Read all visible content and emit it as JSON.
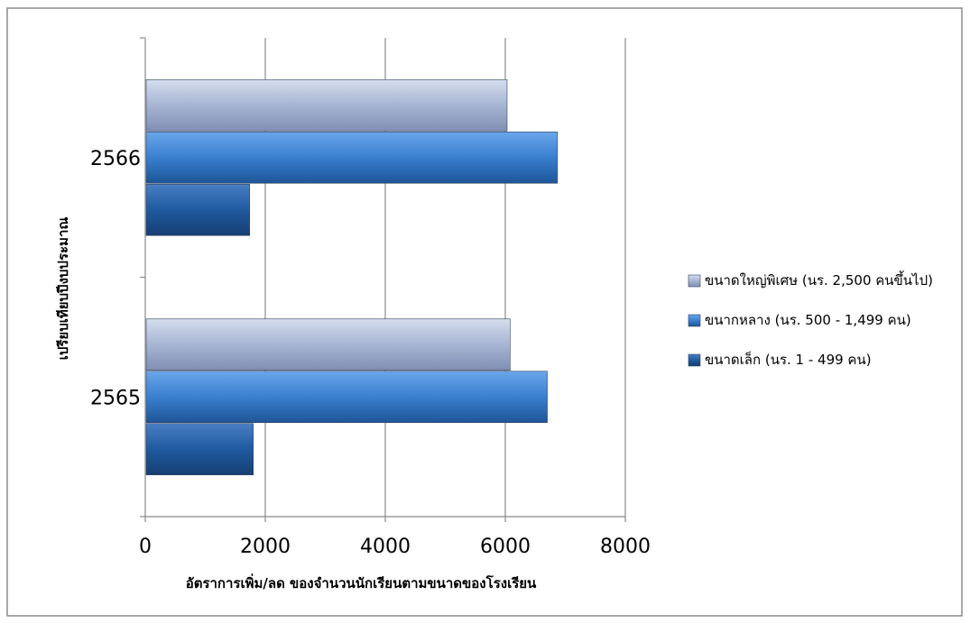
{
  "chart_data": {
    "type": "bar",
    "orientation": "horizontal",
    "title": "",
    "xlabel": "อัตราการเพิ่ม/ลด ของจำนวนนักเรียนตามขนาดของโรงเรียน",
    "ylabel": "เปรียบเทียบปีงบประมาณ",
    "categories": [
      "2565",
      "2566"
    ],
    "xlim": [
      0,
      8000
    ],
    "xticks": [
      0,
      2000,
      4000,
      6000,
      8000
    ],
    "grid": true,
    "legend_position": "right",
    "series": [
      {
        "name": "ขนาดเล็ก (นร. 1 - 499 คน)",
        "values": [
          1800,
          1740
        ],
        "color": "#1f5aa0"
      },
      {
        "name": "ขนาดกลาง (นร. 500 - 1,499 คน)",
        "values": [
          6700,
          6870
        ],
        "color": "#3a7fd0"
      },
      {
        "name": "ขนาดใหญ่พิเศษ (นร. 2,500 คนขึ้นไป)",
        "values": [
          6080,
          6030
        ],
        "color": "#a7b5d3"
      }
    ]
  },
  "legend": {
    "items": [
      {
        "label": "ขนาดใหญ่พิเศษ (นร. 2,500 คนขึ้นไป)",
        "series_index": 2
      },
      {
        "label": "ขนากหลาง (นร. 500 - 1,499 คน)",
        "series_index": 1
      },
      {
        "label": "ขนาดเล็ก (นร. 1 - 499 คน)",
        "series_index": 0
      }
    ]
  }
}
